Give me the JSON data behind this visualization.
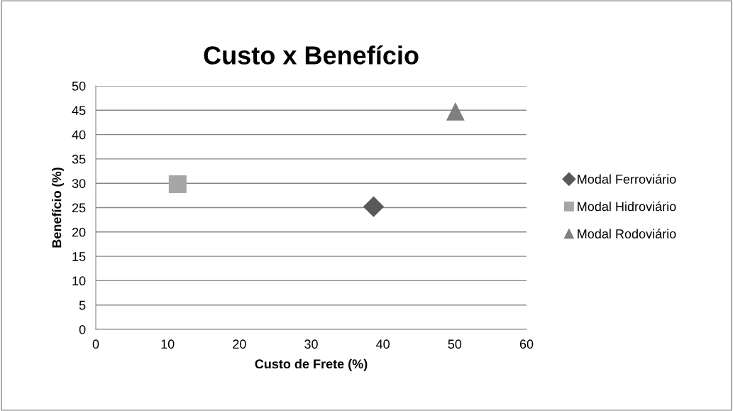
{
  "chart_data": {
    "type": "scatter",
    "title": "Custo x Benefício",
    "xlabel": "Custo de Frete (%)",
    "ylabel": "Benefício (%)",
    "series": [
      {
        "name": "Modal Ferroviário",
        "color": "#595959",
        "marker": "diamond",
        "x": [
          38.7
        ],
        "values": [
          25.2
        ]
      },
      {
        "name": "Modal Hidroviário",
        "color": "#a6a6a6",
        "marker": "square",
        "x": [
          11.4
        ],
        "values": [
          29.8
        ]
      },
      {
        "name": "Modal Rodoviário",
        "color": "#7f7f7f",
        "marker": "triangle",
        "x": [
          50.1
        ],
        "values": [
          44.7
        ]
      }
    ],
    "xlim": [
      0,
      60
    ],
    "xticks": [
      0,
      10,
      20,
      30,
      40,
      50,
      60
    ],
    "ylim": [
      0,
      50
    ],
    "yticks": [
      0,
      5,
      10,
      15,
      20,
      25,
      30,
      35,
      40,
      45,
      50
    ],
    "grid": "y",
    "legend": "right"
  }
}
